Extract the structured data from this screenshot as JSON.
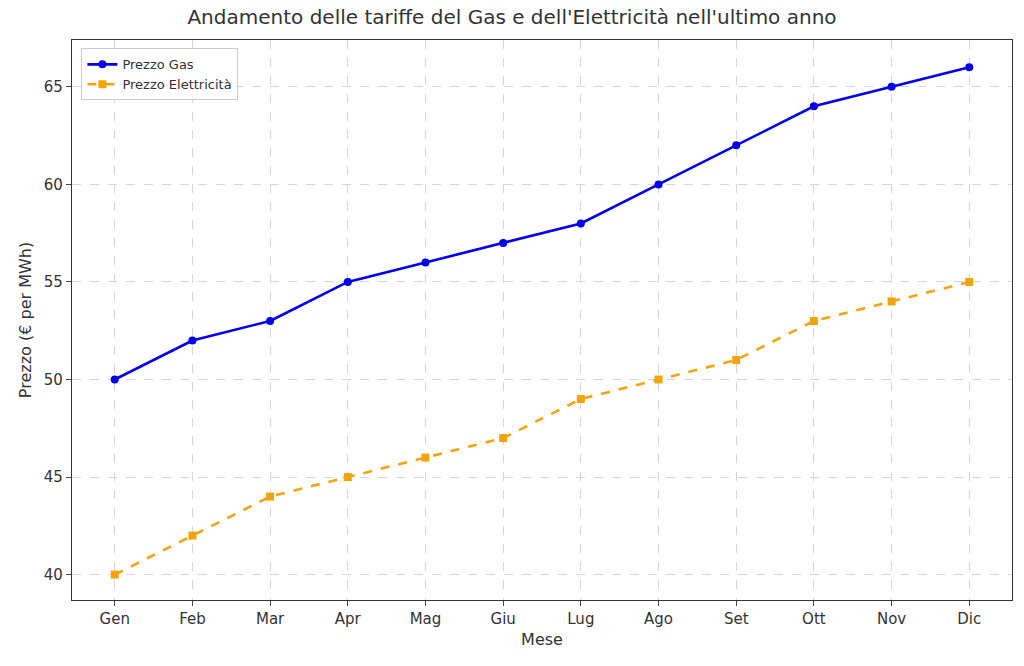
{
  "chart_data": {
    "type": "line",
    "title": "Andamento delle tariffe del Gas e dell'Elettricità nell'ultimo anno",
    "x_label": "Mese",
    "y_label": "Prezzo (€ per MWh)",
    "categories": [
      "Gen",
      "Feb",
      "Mar",
      "Apr",
      "Mag",
      "Giu",
      "Lug",
      "Ago",
      "Set",
      "Ott",
      "Nov",
      "Dic"
    ],
    "series": [
      {
        "name": "Prezzo Gas",
        "color": "#0000ee",
        "marker": "circle",
        "line_style": "solid",
        "values": [
          50,
          52,
          53,
          55,
          56,
          57,
          58,
          60,
          62,
          64,
          65,
          66
        ]
      },
      {
        "name": "Prezzo Elettricità",
        "color": "#f5a30c",
        "marker": "square",
        "line_style": "dash",
        "values": [
          40,
          42,
          44,
          45,
          46,
          47,
          49,
          50,
          51,
          53,
          54,
          55
        ]
      }
    ],
    "ylim": [
      38.7,
      67.4
    ],
    "yticks": [
      40,
      45,
      50,
      55,
      60,
      65
    ],
    "grid": true,
    "legend": "upper left"
  }
}
